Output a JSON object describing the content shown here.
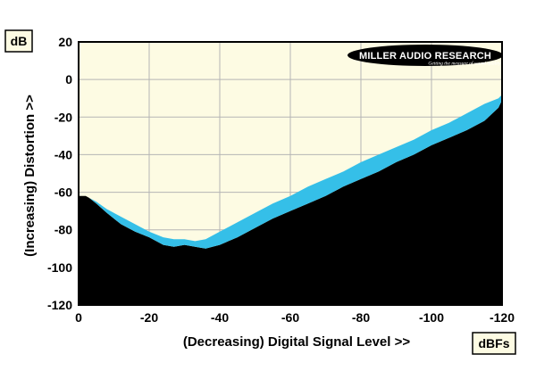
{
  "chart_data": {
    "type": "area",
    "title": "",
    "xlabel": "(Decreasing) Digital Signal Level >>",
    "ylabel": "(Increasing) Distortion >>",
    "x_unit": "dBFs",
    "y_unit": "dB",
    "xlim": [
      0,
      -120
    ],
    "ylim": [
      -120,
      20
    ],
    "x_ticks": [
      0,
      -20,
      -40,
      -60,
      -80,
      -100,
      -120
    ],
    "y_ticks": [
      20,
      0,
      -20,
      -40,
      -60,
      -80,
      -100,
      -120
    ],
    "x_tick_labels": [
      "0",
      "-20",
      "-40",
      "-60",
      "-80",
      "-100",
      "-120"
    ],
    "y_tick_labels": [
      "20",
      "0",
      "-20",
      "-40",
      "-60",
      "-80",
      "-100",
      "-120"
    ],
    "grid": true,
    "background_color": "#fdfbe3",
    "series": [
      {
        "color": "#35bfe8",
        "x": [
          0,
          -2,
          -3,
          -5,
          -8,
          -12,
          -16,
          -20,
          -24,
          -27,
          -30,
          -33,
          -36,
          -40,
          -45,
          -50,
          -55,
          -60,
          -65,
          -70,
          -75,
          -80,
          -85,
          -90,
          -95,
          -100,
          -105,
          -110,
          -115,
          -119
        ],
        "upper": [
          -62,
          -62,
          -63,
          -65,
          -69,
          -73,
          -77,
          -81,
          -84,
          -85,
          -85,
          -86,
          -85,
          -81,
          -76,
          -71,
          -66,
          -62,
          -57,
          -53,
          -49,
          -44,
          -40,
          -36,
          -32,
          -27,
          -23,
          -18,
          -13,
          -10
        ],
        "lower": [
          -62,
          -62,
          -63,
          -66,
          -71,
          -77,
          -81,
          -84,
          -88,
          -89,
          -88,
          -89,
          -90,
          -88,
          -84,
          -79,
          -74,
          -70,
          -66,
          -62,
          -57,
          -53,
          -49,
          -44,
          -40,
          -35,
          -31,
          -27,
          -22,
          -15
        ]
      }
    ],
    "logo": {
      "text": "MILLER AUDIO RESEARCH",
      "tagline": "Getting the measure of sound quality"
    }
  }
}
